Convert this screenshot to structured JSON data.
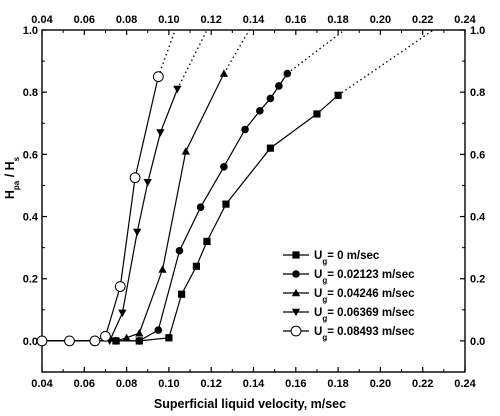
{
  "chart_data": {
    "type": "line",
    "title": "",
    "xlabel": "Superficial liquid velocity, m/sec",
    "ylabel": {
      "main": "H",
      "sub1": "pa",
      "mid": " / H",
      "sub2": "s"
    },
    "xlim": [
      0.04,
      0.24
    ],
    "ylim": [
      -0.1,
      1.0
    ],
    "xticks": [
      "0.04",
      "0.06",
      "0.08",
      "0.10",
      "0.12",
      "0.14",
      "0.16",
      "0.18",
      "0.20",
      "0.22",
      "0.24"
    ],
    "yticks": [
      "0.0",
      "0.2",
      "0.4",
      "0.6",
      "0.8",
      "1.0"
    ],
    "top_axis_labels": true,
    "right_axis_labels": true,
    "grid": false,
    "legend_position": "bottom-right",
    "series": [
      {
        "name": {
          "pre": "U",
          "sub": "g",
          "post": "= 0 m/sec"
        },
        "marker": "square",
        "points": [
          [
            0.04,
            0.0
          ],
          [
            0.053,
            0.0
          ],
          [
            0.065,
            0.0
          ],
          [
            0.075,
            0.0
          ],
          [
            0.086,
            0.0
          ],
          [
            0.1,
            0.01
          ],
          [
            0.106,
            0.15
          ],
          [
            0.113,
            0.24
          ],
          [
            0.118,
            0.32
          ],
          [
            0.127,
            0.44
          ],
          [
            0.148,
            0.62
          ],
          [
            0.17,
            0.73
          ],
          [
            0.18,
            0.79
          ]
        ],
        "extrapolation": [
          [
            0.18,
            0.79
          ],
          [
            0.225,
            1.0
          ]
        ]
      },
      {
        "name": {
          "pre": "U",
          "sub": "g",
          "post": "= 0.02123 m/sec"
        },
        "marker": "circle",
        "points": [
          [
            0.04,
            0.0
          ],
          [
            0.053,
            0.0
          ],
          [
            0.065,
            0.0
          ],
          [
            0.075,
            0.0
          ],
          [
            0.086,
            0.0
          ],
          [
            0.095,
            0.035
          ],
          [
            0.105,
            0.29
          ],
          [
            0.115,
            0.43
          ],
          [
            0.126,
            0.56
          ],
          [
            0.136,
            0.68
          ],
          [
            0.143,
            0.74
          ],
          [
            0.148,
            0.78
          ],
          [
            0.152,
            0.82
          ],
          [
            0.156,
            0.86
          ]
        ],
        "extrapolation": [
          [
            0.156,
            0.86
          ],
          [
            0.183,
            1.0
          ]
        ]
      },
      {
        "name": {
          "pre": "U",
          "sub": "g",
          "post": "= 0.04246 m/sec"
        },
        "marker": "triangle-up",
        "points": [
          [
            0.04,
            0.0
          ],
          [
            0.053,
            0.0
          ],
          [
            0.065,
            0.0
          ],
          [
            0.075,
            0.0
          ],
          [
            0.08,
            0.01
          ],
          [
            0.086,
            0.025
          ],
          [
            0.097,
            0.23
          ],
          [
            0.108,
            0.61
          ],
          [
            0.126,
            0.86
          ]
        ],
        "extrapolation": [
          [
            0.126,
            0.86
          ],
          [
            0.138,
            1.0
          ]
        ]
      },
      {
        "name": {
          "pre": "U",
          "sub": "g",
          "post": "= 0.06369 m/sec"
        },
        "marker": "triangle-down",
        "points": [
          [
            0.04,
            0.0
          ],
          [
            0.053,
            0.0
          ],
          [
            0.065,
            0.0
          ],
          [
            0.072,
            0.0
          ],
          [
            0.078,
            0.09
          ],
          [
            0.085,
            0.35
          ],
          [
            0.09,
            0.51
          ],
          [
            0.096,
            0.67
          ],
          [
            0.104,
            0.81
          ]
        ],
        "extrapolation": [
          [
            0.104,
            0.81
          ],
          [
            0.118,
            1.0
          ]
        ]
      },
      {
        "name": {
          "pre": "U",
          "sub": "g",
          "post": "= 0.08493 m/sec"
        },
        "marker": "circle-open",
        "points": [
          [
            0.04,
            0.0
          ],
          [
            0.053,
            0.0
          ],
          [
            0.065,
            0.0
          ],
          [
            0.07,
            0.015
          ],
          [
            0.077,
            0.175
          ],
          [
            0.084,
            0.525
          ],
          [
            0.095,
            0.85
          ]
        ],
        "extrapolation": [
          [
            0.095,
            0.85
          ],
          [
            0.103,
            1.0
          ]
        ]
      }
    ]
  }
}
